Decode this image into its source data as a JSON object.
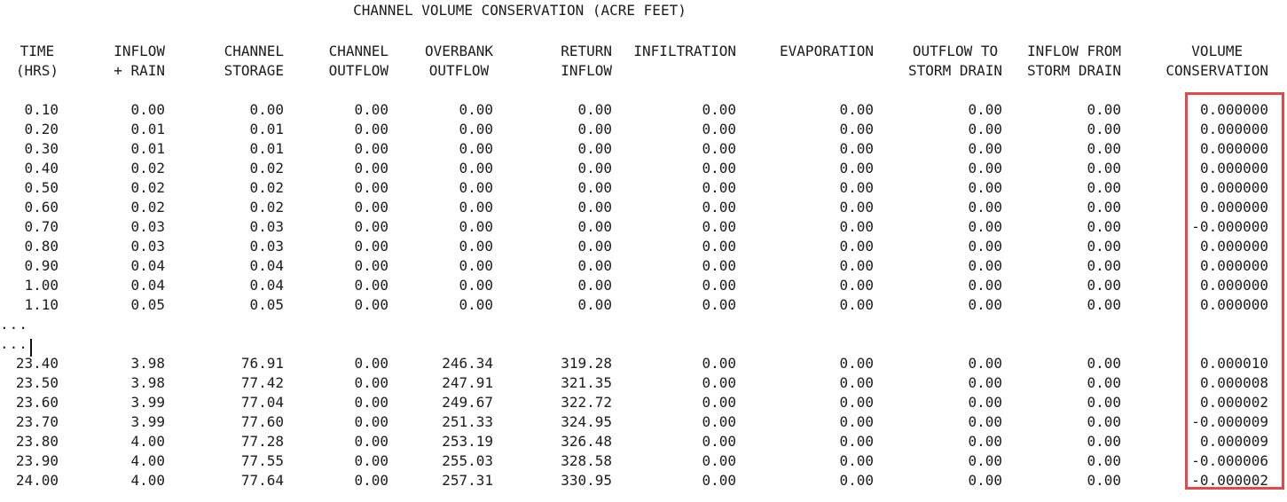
{
  "title": "CHANNEL VOLUME CONSERVATION (ACRE FEET)",
  "table": {
    "columns": [
      {
        "line1": "TIME",
        "line2": "(HRS)"
      },
      {
        "line1": "INFLOW",
        "line2": "+ RAIN"
      },
      {
        "line1": "CHANNEL",
        "line2": "STORAGE"
      },
      {
        "line1": "CHANNEL",
        "line2": "OUTFLOW"
      },
      {
        "line1": "OVERBANK",
        "line2": "OUTFLOW"
      },
      {
        "line1": "RETURN",
        "line2": "INFLOW"
      },
      {
        "line1": "INFILTRATION",
        "line2": ""
      },
      {
        "line1": "EVAPORATION",
        "line2": ""
      },
      {
        "line1": "OUTFLOW TO",
        "line2": "STORM DRAIN"
      },
      {
        "line1": "INFLOW FROM",
        "line2": "STORM DRAIN"
      },
      {
        "line1": "VOLUME",
        "line2": "CONSERVATION"
      }
    ],
    "rows_top": [
      [
        "0.10",
        "0.00",
        "0.00",
        "0.00",
        "0.00",
        "0.00",
        "0.00",
        "0.00",
        "0.00",
        "0.00",
        "0.000000"
      ],
      [
        "0.20",
        "0.01",
        "0.01",
        "0.00",
        "0.00",
        "0.00",
        "0.00",
        "0.00",
        "0.00",
        "0.00",
        "0.000000"
      ],
      [
        "0.30",
        "0.01",
        "0.01",
        "0.00",
        "0.00",
        "0.00",
        "0.00",
        "0.00",
        "0.00",
        "0.00",
        "0.000000"
      ],
      [
        "0.40",
        "0.02",
        "0.02",
        "0.00",
        "0.00",
        "0.00",
        "0.00",
        "0.00",
        "0.00",
        "0.00",
        "0.000000"
      ],
      [
        "0.50",
        "0.02",
        "0.02",
        "0.00",
        "0.00",
        "0.00",
        "0.00",
        "0.00",
        "0.00",
        "0.00",
        "0.000000"
      ],
      [
        "0.60",
        "0.02",
        "0.02",
        "0.00",
        "0.00",
        "0.00",
        "0.00",
        "0.00",
        "0.00",
        "0.00",
        "0.000000"
      ],
      [
        "0.70",
        "0.03",
        "0.03",
        "0.00",
        "0.00",
        "0.00",
        "0.00",
        "0.00",
        "0.00",
        "0.00",
        "-0.000000"
      ],
      [
        "0.80",
        "0.03",
        "0.03",
        "0.00",
        "0.00",
        "0.00",
        "0.00",
        "0.00",
        "0.00",
        "0.00",
        "0.000000"
      ],
      [
        "0.90",
        "0.04",
        "0.04",
        "0.00",
        "0.00",
        "0.00",
        "0.00",
        "0.00",
        "0.00",
        "0.00",
        "0.000000"
      ],
      [
        "1.00",
        "0.04",
        "0.04",
        "0.00",
        "0.00",
        "0.00",
        "0.00",
        "0.00",
        "0.00",
        "0.00",
        "0.000000"
      ],
      [
        "1.10",
        "0.05",
        "0.05",
        "0.00",
        "0.00",
        "0.00",
        "0.00",
        "0.00",
        "0.00",
        "0.00",
        "0.000000"
      ]
    ],
    "ellipsis": [
      "...",
      "..."
    ],
    "rows_bottom": [
      [
        "23.40",
        "3.98",
        "76.91",
        "0.00",
        "246.34",
        "319.28",
        "0.00",
        "0.00",
        "0.00",
        "0.00",
        "0.000010"
      ],
      [
        "23.50",
        "3.98",
        "77.42",
        "0.00",
        "247.91",
        "321.35",
        "0.00",
        "0.00",
        "0.00",
        "0.00",
        "0.000008"
      ],
      [
        "23.60",
        "3.99",
        "77.04",
        "0.00",
        "249.67",
        "322.72",
        "0.00",
        "0.00",
        "0.00",
        "0.00",
        "0.000002"
      ],
      [
        "23.70",
        "3.99",
        "77.60",
        "0.00",
        "251.33",
        "324.95",
        "0.00",
        "0.00",
        "0.00",
        "0.00",
        "-0.000009"
      ],
      [
        "23.80",
        "4.00",
        "77.28",
        "0.00",
        "253.19",
        "326.48",
        "0.00",
        "0.00",
        "0.00",
        "0.00",
        "0.000009"
      ],
      [
        "23.90",
        "4.00",
        "77.55",
        "0.00",
        "255.03",
        "328.58",
        "0.00",
        "0.00",
        "0.00",
        "0.00",
        "-0.000006"
      ],
      [
        "24.00",
        "4.00",
        "77.64",
        "0.00",
        "257.31",
        "330.95",
        "0.00",
        "0.00",
        "0.00",
        "0.00",
        "-0.000002"
      ]
    ]
  },
  "annotation": {
    "highlight_color": "#e4484a",
    "highlighted_column": "VOLUME CONSERVATION"
  }
}
